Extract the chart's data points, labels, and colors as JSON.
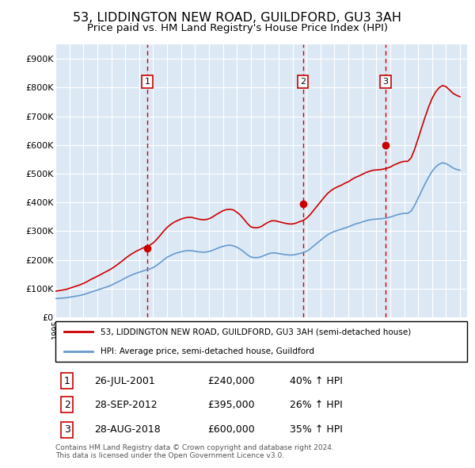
{
  "title": "53, LIDDINGTON NEW ROAD, GUILDFORD, GU3 3AH",
  "subtitle": "Price paid vs. HM Land Registry's House Price Index (HPI)",
  "title_fontsize": 11.5,
  "subtitle_fontsize": 9.5,
  "background_color": "#ffffff",
  "plot_bg_color": "#dce9f5",
  "grid_color": "#ffffff",
  "ylim": [
    0,
    950000
  ],
  "yticks": [
    0,
    100000,
    200000,
    300000,
    400000,
    500000,
    600000,
    700000,
    800000,
    900000
  ],
  "ytick_labels": [
    "£0",
    "£100K",
    "£200K",
    "£300K",
    "£400K",
    "£500K",
    "£600K",
    "£700K",
    "£800K",
    "£900K"
  ],
  "xlim_start": 1995.0,
  "xlim_end": 2024.5,
  "hpi_color": "#6699cc",
  "price_color": "#cc0000",
  "sale_marker_color": "#cc0000",
  "vline_color": "#cc0000",
  "sale_dates": [
    2001.57,
    2012.74,
    2018.66
  ],
  "sale_prices": [
    240000,
    395000,
    600000
  ],
  "sale_labels": [
    "1",
    "2",
    "3"
  ],
  "legend_line1": "53, LIDDINGTON NEW ROAD, GUILDFORD, GU3 3AH (semi-detached house)",
  "legend_line2": "HPI: Average price, semi-detached house, Guildford",
  "transactions": [
    {
      "num": "1",
      "date": "26-JUL-2001",
      "price": "£240,000",
      "hpi": "40% ↑ HPI"
    },
    {
      "num": "2",
      "date": "28-SEP-2012",
      "price": "£395,000",
      "hpi": "26% ↑ HPI"
    },
    {
      "num": "3",
      "date": "28-AUG-2018",
      "price": "£600,000",
      "hpi": "35% ↑ HPI"
    }
  ],
  "footer": "Contains HM Land Registry data © Crown copyright and database right 2024.\nThis data is licensed under the Open Government Licence v3.0.",
  "hpi_data_x": [
    1995.0,
    1995.25,
    1995.5,
    1995.75,
    1996.0,
    1996.25,
    1996.5,
    1996.75,
    1997.0,
    1997.25,
    1997.5,
    1997.75,
    1998.0,
    1998.25,
    1998.5,
    1998.75,
    1999.0,
    1999.25,
    1999.5,
    1999.75,
    2000.0,
    2000.25,
    2000.5,
    2000.75,
    2001.0,
    2001.25,
    2001.5,
    2001.75,
    2002.0,
    2002.25,
    2002.5,
    2002.75,
    2003.0,
    2003.25,
    2003.5,
    2003.75,
    2004.0,
    2004.25,
    2004.5,
    2004.75,
    2005.0,
    2005.25,
    2005.5,
    2005.75,
    2006.0,
    2006.25,
    2006.5,
    2006.75,
    2007.0,
    2007.25,
    2007.5,
    2007.75,
    2008.0,
    2008.25,
    2008.5,
    2008.75,
    2009.0,
    2009.25,
    2009.5,
    2009.75,
    2010.0,
    2010.25,
    2010.5,
    2010.75,
    2011.0,
    2011.25,
    2011.5,
    2011.75,
    2012.0,
    2012.25,
    2012.5,
    2012.75,
    2013.0,
    2013.25,
    2013.5,
    2013.75,
    2014.0,
    2014.25,
    2014.5,
    2014.75,
    2015.0,
    2015.25,
    2015.5,
    2015.75,
    2016.0,
    2016.25,
    2016.5,
    2016.75,
    2017.0,
    2017.25,
    2017.5,
    2017.75,
    2018.0,
    2018.25,
    2018.5,
    2018.75,
    2019.0,
    2019.25,
    2019.5,
    2019.75,
    2020.0,
    2020.25,
    2020.5,
    2020.75,
    2021.0,
    2021.25,
    2021.5,
    2021.75,
    2022.0,
    2022.25,
    2022.5,
    2022.75,
    2023.0,
    2023.25,
    2023.5,
    2023.75,
    2024.0
  ],
  "hpi_data_y": [
    65000,
    66000,
    67000,
    68000,
    70000,
    72000,
    74000,
    76000,
    79000,
    83000,
    87000,
    91000,
    95000,
    99000,
    103000,
    107000,
    112000,
    118000,
    124000,
    130000,
    137000,
    143000,
    148000,
    153000,
    157000,
    161000,
    165000,
    168000,
    173000,
    181000,
    190000,
    200000,
    209000,
    215000,
    221000,
    225000,
    228000,
    231000,
    232000,
    232000,
    230000,
    228000,
    227000,
    227000,
    229000,
    233000,
    238000,
    243000,
    247000,
    250000,
    251000,
    249000,
    244000,
    237000,
    228000,
    218000,
    210000,
    208000,
    208000,
    211000,
    216000,
    221000,
    224000,
    224000,
    222000,
    220000,
    218000,
    217000,
    217000,
    219000,
    222000,
    225000,
    230000,
    238000,
    248000,
    258000,
    268000,
    278000,
    287000,
    294000,
    299000,
    303000,
    307000,
    311000,
    315000,
    320000,
    325000,
    328000,
    332000,
    336000,
    339000,
    341000,
    342000,
    343000,
    344000,
    346000,
    349000,
    353000,
    357000,
    360000,
    362000,
    362000,
    370000,
    390000,
    415000,
    440000,
    465000,
    488000,
    508000,
    523000,
    533000,
    538000,
    535000,
    528000,
    520000,
    515000,
    512000
  ],
  "red_data_x": [
    1995.0,
    1995.25,
    1995.5,
    1995.75,
    1996.0,
    1996.25,
    1996.5,
    1996.75,
    1997.0,
    1997.25,
    1997.5,
    1997.75,
    1998.0,
    1998.25,
    1998.5,
    1998.75,
    1999.0,
    1999.25,
    1999.5,
    1999.75,
    2000.0,
    2000.25,
    2000.5,
    2000.75,
    2001.0,
    2001.25,
    2001.5,
    2001.75,
    2002.0,
    2002.25,
    2002.5,
    2002.75,
    2003.0,
    2003.25,
    2003.5,
    2003.75,
    2004.0,
    2004.25,
    2004.5,
    2004.75,
    2005.0,
    2005.25,
    2005.5,
    2005.75,
    2006.0,
    2006.25,
    2006.5,
    2006.75,
    2007.0,
    2007.25,
    2007.5,
    2007.75,
    2008.0,
    2008.25,
    2008.5,
    2008.75,
    2009.0,
    2009.25,
    2009.5,
    2009.75,
    2010.0,
    2010.25,
    2010.5,
    2010.75,
    2011.0,
    2011.25,
    2011.5,
    2011.75,
    2012.0,
    2012.25,
    2012.5,
    2012.75,
    2013.0,
    2013.25,
    2013.5,
    2013.75,
    2014.0,
    2014.25,
    2014.5,
    2014.75,
    2015.0,
    2015.25,
    2015.5,
    2015.75,
    2016.0,
    2016.25,
    2016.5,
    2016.75,
    2017.0,
    2017.25,
    2017.5,
    2017.75,
    2018.0,
    2018.25,
    2018.5,
    2018.75,
    2019.0,
    2019.25,
    2019.5,
    2019.75,
    2020.0,
    2020.25,
    2020.5,
    2020.75,
    2021.0,
    2021.25,
    2021.5,
    2021.75,
    2022.0,
    2022.25,
    2022.5,
    2022.75,
    2023.0,
    2023.25,
    2023.5,
    2023.75,
    2024.0
  ],
  "red_data_y": [
    91000,
    93000,
    95000,
    97000,
    101000,
    105000,
    109000,
    113000,
    118000,
    124000,
    131000,
    137000,
    143000,
    149000,
    156000,
    162000,
    169000,
    177000,
    186000,
    195000,
    205000,
    214000,
    222000,
    229000,
    235000,
    241000,
    246000,
    251000,
    259000,
    271000,
    285000,
    300000,
    313000,
    323000,
    331000,
    337000,
    342000,
    346000,
    348000,
    348000,
    345000,
    342000,
    340000,
    340000,
    343000,
    349000,
    357000,
    364000,
    371000,
    375000,
    376000,
    374000,
    366000,
    356000,
    342000,
    327000,
    315000,
    312000,
    312000,
    316000,
    324000,
    331000,
    336000,
    336000,
    333000,
    330000,
    327000,
    325000,
    325000,
    328000,
    333000,
    337000,
    345000,
    357000,
    372000,
    387000,
    402000,
    417000,
    431000,
    441000,
    449000,
    455000,
    460000,
    467000,
    472000,
    480000,
    487000,
    492000,
    498000,
    504000,
    508000,
    512000,
    513000,
    514000,
    516000,
    519000,
    523000,
    530000,
    535000,
    540000,
    543000,
    543000,
    555000,
    585000,
    622000,
    660000,
    697000,
    732000,
    762000,
    784000,
    799000,
    807000,
    803000,
    792000,
    780000,
    773000,
    768000
  ]
}
